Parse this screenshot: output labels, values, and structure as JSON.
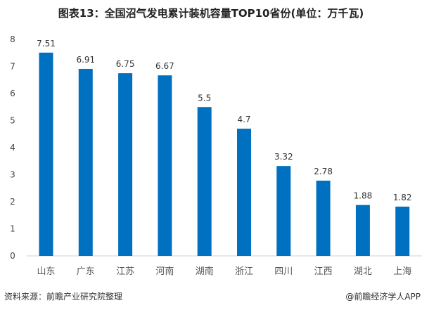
{
  "chart_data": {
    "type": "bar",
    "title": "图表13：全国沼气发电累计装机容量TOP10省份(单位：万千瓦)",
    "xlabel": "",
    "ylabel": "",
    "categories": [
      "山东",
      "广东",
      "江苏",
      "河南",
      "湖南",
      "浙江",
      "四川",
      "江西",
      "湖北",
      "上海"
    ],
    "values": [
      7.51,
      6.91,
      6.75,
      6.67,
      5.5,
      4.7,
      3.32,
      2.78,
      1.88,
      1.82
    ],
    "data_labels": [
      "7.51",
      "6.91",
      "6.75",
      "6.67",
      "5.5",
      "4.7",
      "3.32",
      "2.78",
      "1.88",
      "1.82"
    ],
    "ylim": [
      0,
      8
    ],
    "yticks": [
      "0",
      "1",
      "2",
      "3",
      "4",
      "5",
      "6",
      "7",
      "8"
    ],
    "grid": false,
    "legend": "none",
    "bar_color": "#0070C0"
  },
  "footer": {
    "source": "资料来源：前瞻产业研究院整理",
    "credit": "@前瞻经济学人APP"
  }
}
